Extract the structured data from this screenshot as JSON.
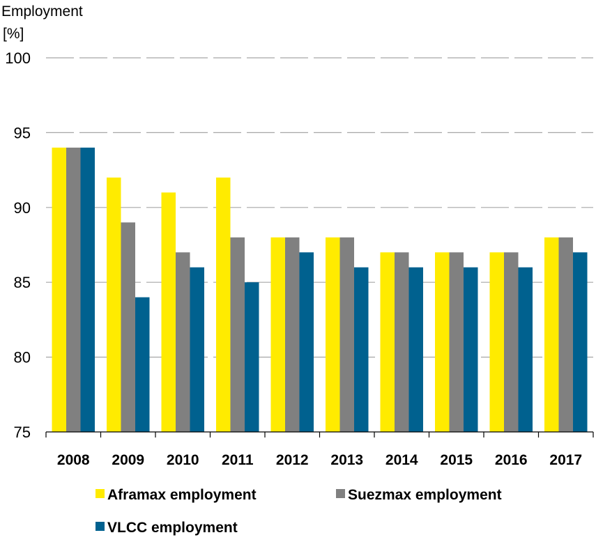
{
  "chart_data": {
    "type": "bar",
    "ylabel": "Employment",
    "yunit": "[%]",
    "ylim": [
      75,
      100
    ],
    "yticks": [
      75,
      80,
      85,
      90,
      95,
      100
    ],
    "grid": true,
    "legend_position": "bottom",
    "categories": [
      "2008",
      "2009",
      "2010",
      "2011",
      "2012",
      "2013",
      "2014",
      "2015",
      "2016",
      "2017"
    ],
    "series": [
      {
        "name": "Aframax employment",
        "color": "#FFEB00",
        "values": [
          94,
          92,
          91,
          92,
          88,
          88,
          87,
          87,
          87,
          88
        ]
      },
      {
        "name": "Suezmax employment",
        "color": "#808080",
        "values": [
          94,
          89,
          87,
          88,
          88,
          88,
          87,
          87,
          87,
          88
        ]
      },
      {
        "name": "VLCC employment",
        "color": "#00618F",
        "values": [
          94,
          84,
          86,
          85,
          87,
          86,
          86,
          86,
          86,
          87
        ]
      }
    ]
  }
}
